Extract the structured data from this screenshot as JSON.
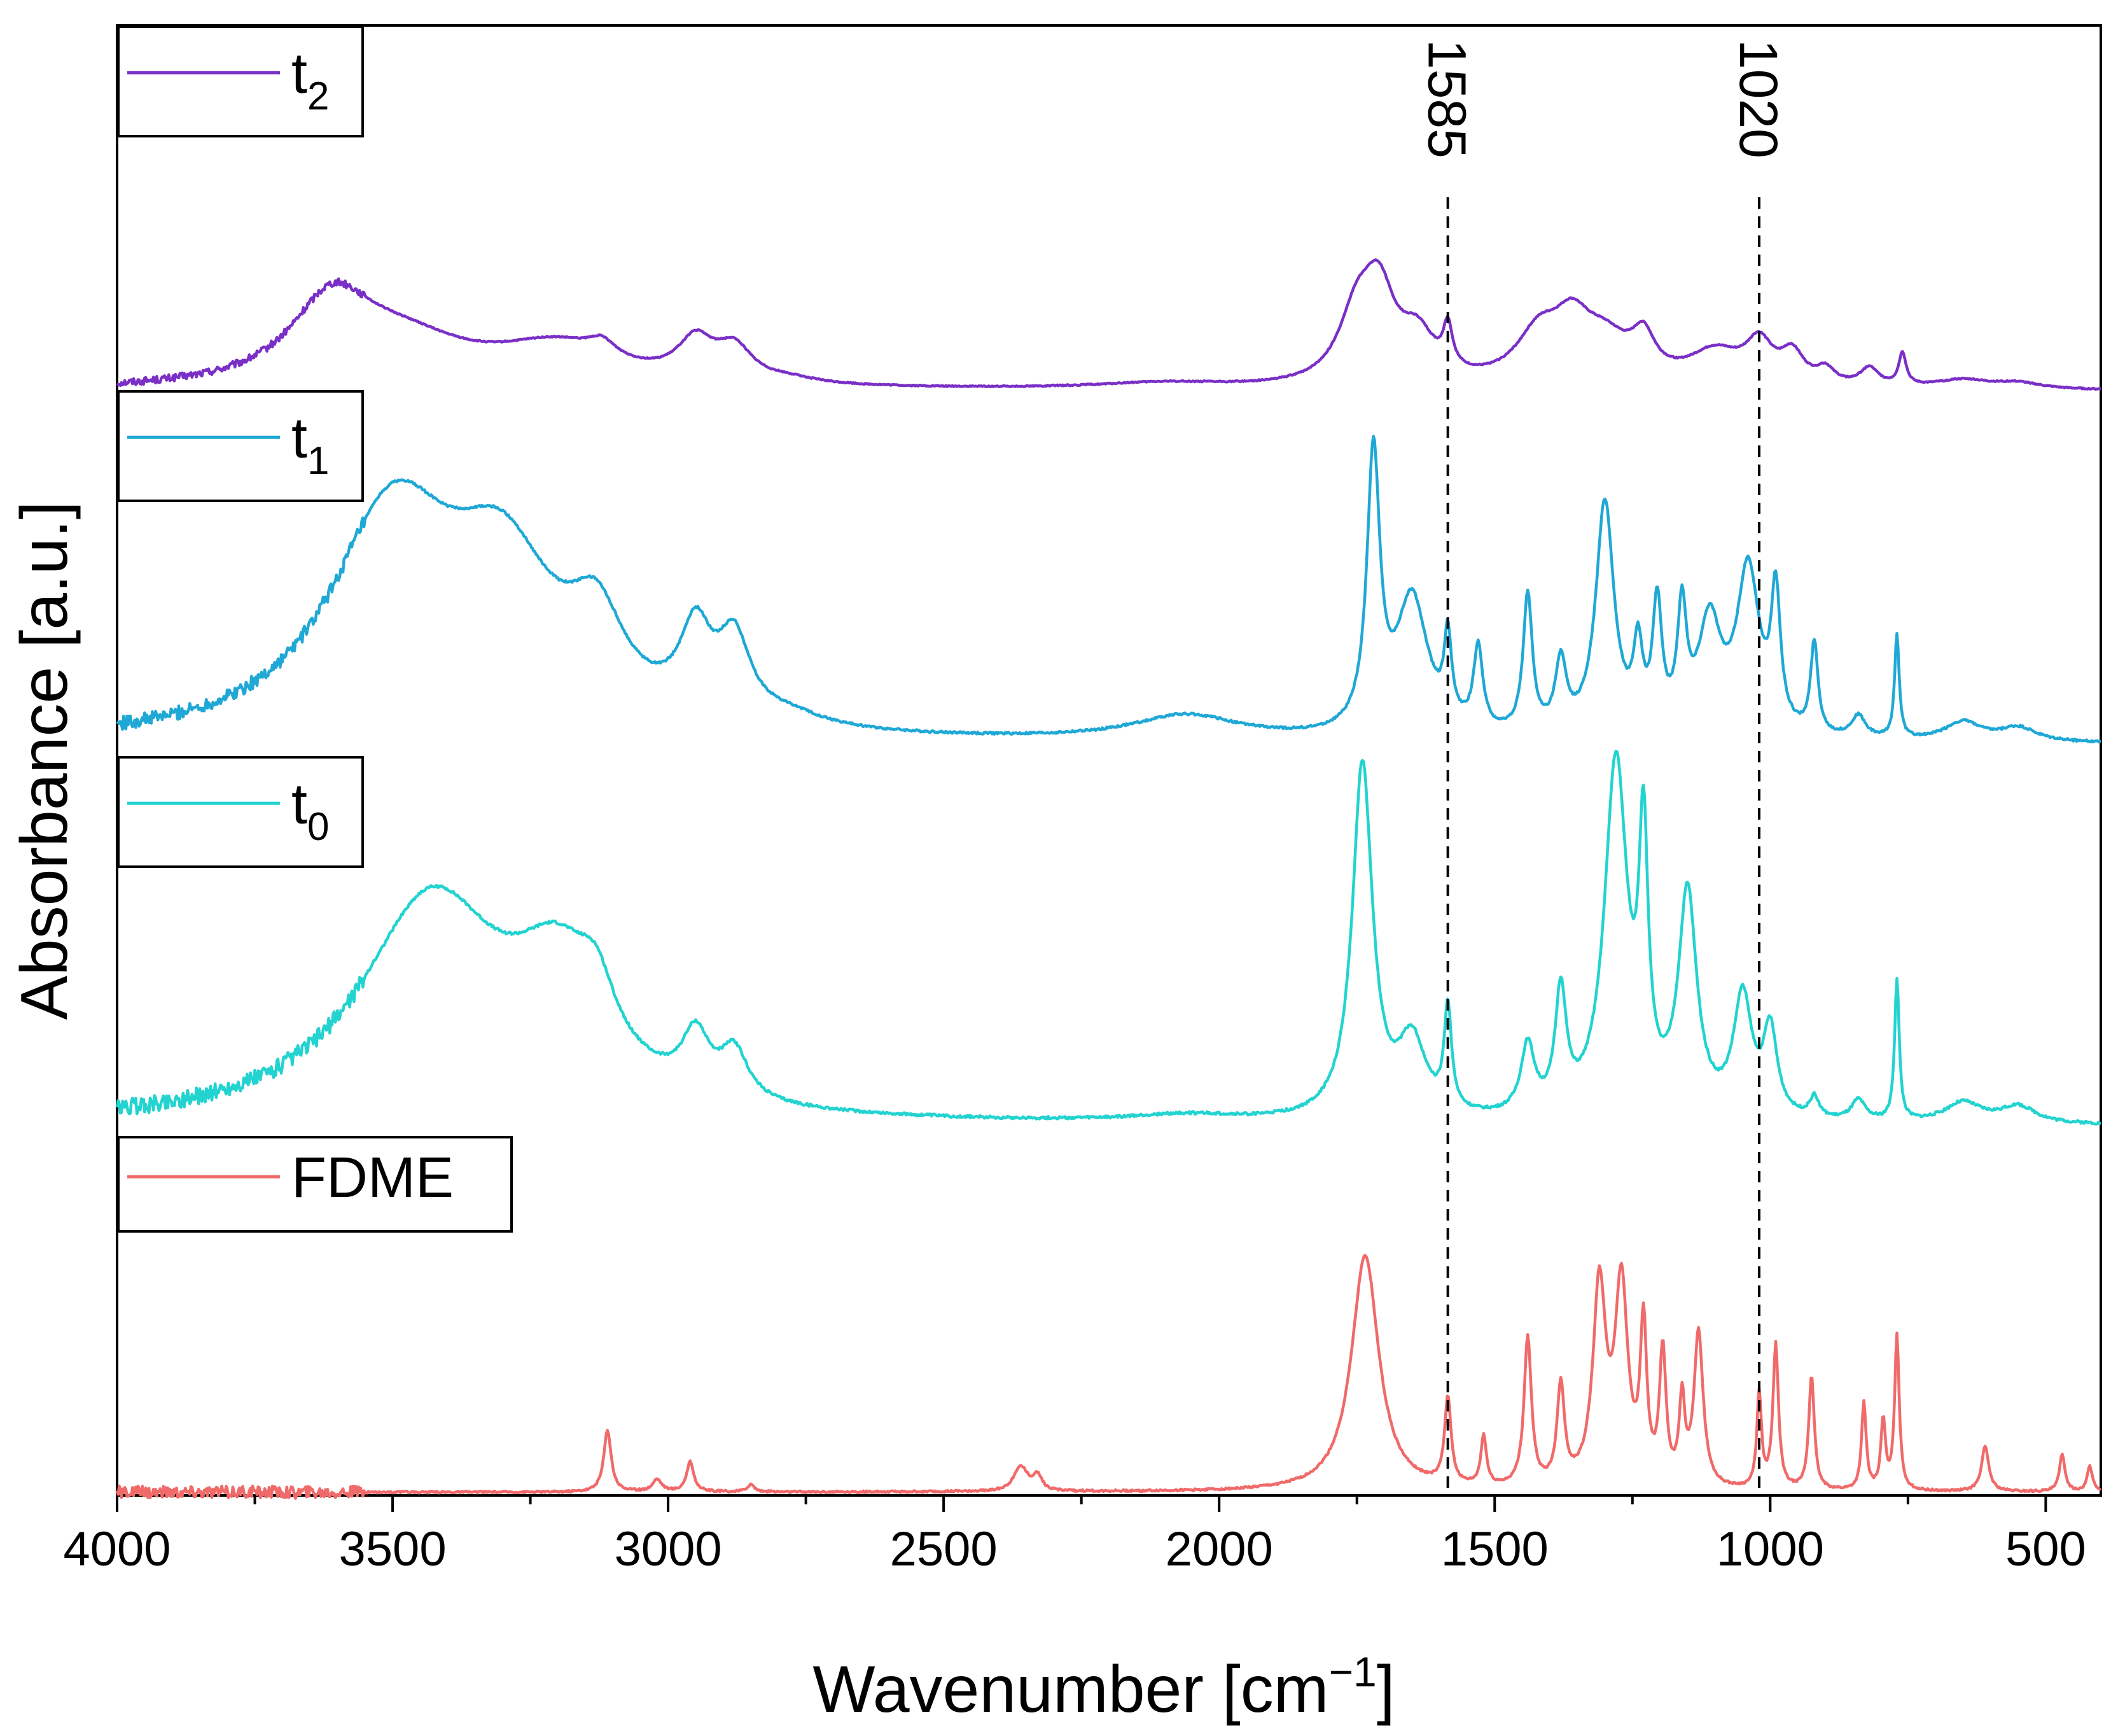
{
  "chart_data": {
    "type": "line",
    "title": "",
    "xlabel": "Wavenumber [cm",
    "xlabel_sup": "−1",
    "xlabel_end": "]",
    "ylabel": "Absorbance [a.u.]",
    "xlim": [
      4000,
      400
    ],
    "x_reversed": true,
    "xticks": [
      4000,
      3500,
      3000,
      2500,
      2000,
      1500,
      1000,
      500
    ],
    "yticks": [],
    "grid": false,
    "stacked_offset": true,
    "markers": [
      {
        "label": "1585",
        "x": 1585,
        "style": "dashed"
      },
      {
        "label": "1020",
        "x": 1020,
        "style": "dashed"
      }
    ],
    "series": [
      {
        "name": "t2",
        "legend_base": "t",
        "legend_sub": "2",
        "color": "#7a2fc6",
        "baseline": 0.0,
        "scale": 1.0,
        "peaks": [
          {
            "x": 3610,
            "h": 0.55,
            "w": 90
          },
          {
            "x": 3480,
            "h": 0.28,
            "w": 150
          },
          {
            "x": 3200,
            "h": 0.26,
            "w": 140
          },
          {
            "x": 3120,
            "h": 0.1,
            "w": 30
          },
          {
            "x": 2950,
            "h": 0.26,
            "w": 40
          },
          {
            "x": 2880,
            "h": 0.22,
            "w": 40
          },
          {
            "x": 2780,
            "h": 0.03,
            "w": 60
          },
          {
            "x": 2100,
            "h": 0.04,
            "w": 150
          },
          {
            "x": 1750,
            "h": 0.45,
            "w": 40
          },
          {
            "x": 1710,
            "h": 0.55,
            "w": 35
          },
          {
            "x": 1640,
            "h": 0.3,
            "w": 40
          },
          {
            "x": 1585,
            "h": 0.28,
            "w": 10
          },
          {
            "x": 1420,
            "h": 0.32,
            "w": 50
          },
          {
            "x": 1360,
            "h": 0.32,
            "w": 40
          },
          {
            "x": 1300,
            "h": 0.28,
            "w": 60
          },
          {
            "x": 1230,
            "h": 0.25,
            "w": 25
          },
          {
            "x": 1100,
            "h": 0.22,
            "w": 60
          },
          {
            "x": 1020,
            "h": 0.26,
            "w": 30
          },
          {
            "x": 960,
            "h": 0.2,
            "w": 25
          },
          {
            "x": 900,
            "h": 0.1,
            "w": 20
          },
          {
            "x": 820,
            "h": 0.12,
            "w": 20
          },
          {
            "x": 760,
            "h": 0.22,
            "w": 8
          },
          {
            "x": 650,
            "h": 0.06,
            "w": 60
          },
          {
            "x": 550,
            "h": 0.04,
            "w": 50
          }
        ]
      },
      {
        "name": "t1",
        "legend_base": "t",
        "legend_sub": "1",
        "color": "#1fa8d6",
        "baseline": 0.0,
        "scale": 1.0,
        "peaks": [
          {
            "x": 3500,
            "h": 0.8,
            "w": 140
          },
          {
            "x": 3300,
            "h": 0.55,
            "w": 120
          },
          {
            "x": 3130,
            "h": 0.3,
            "w": 60
          },
          {
            "x": 2950,
            "h": 0.3,
            "w": 35
          },
          {
            "x": 2880,
            "h": 0.28,
            "w": 35
          },
          {
            "x": 2780,
            "h": 0.04,
            "w": 80
          },
          {
            "x": 2060,
            "h": 0.09,
            "w": 120
          },
          {
            "x": 1720,
            "h": 1.0,
            "w": 14
          },
          {
            "x": 1650,
            "h": 0.5,
            "w": 35
          },
          {
            "x": 1585,
            "h": 0.3,
            "w": 8
          },
          {
            "x": 1530,
            "h": 0.3,
            "w": 10
          },
          {
            "x": 1440,
            "h": 0.5,
            "w": 10
          },
          {
            "x": 1380,
            "h": 0.25,
            "w": 12
          },
          {
            "x": 1300,
            "h": 0.85,
            "w": 20
          },
          {
            "x": 1240,
            "h": 0.28,
            "w": 10
          },
          {
            "x": 1205,
            "h": 0.45,
            "w": 10
          },
          {
            "x": 1160,
            "h": 0.42,
            "w": 10
          },
          {
            "x": 1110,
            "h": 0.4,
            "w": 25
          },
          {
            "x": 1040,
            "h": 0.6,
            "w": 25
          },
          {
            "x": 990,
            "h": 0.48,
            "w": 10
          },
          {
            "x": 920,
            "h": 0.33,
            "w": 8
          },
          {
            "x": 840,
            "h": 0.08,
            "w": 15
          },
          {
            "x": 770,
            "h": 0.38,
            "w": 5
          },
          {
            "x": 650,
            "h": 0.07,
            "w": 40
          },
          {
            "x": 550,
            "h": 0.05,
            "w": 40
          }
        ]
      },
      {
        "name": "t0",
        "legend_base": "t",
        "legend_sub": "0",
        "color": "#22d3d0",
        "baseline": 0.0,
        "scale": 1.0,
        "peaks": [
          {
            "x": 3430,
            "h": 0.65,
            "w": 160
          },
          {
            "x": 3200,
            "h": 0.35,
            "w": 100
          },
          {
            "x": 3130,
            "h": 0.15,
            "w": 40
          },
          {
            "x": 2950,
            "h": 0.17,
            "w": 30
          },
          {
            "x": 2880,
            "h": 0.14,
            "w": 30
          },
          {
            "x": 2060,
            "h": 0.02,
            "w": 120
          },
          {
            "x": 1740,
            "h": 1.05,
            "w": 22
          },
          {
            "x": 1650,
            "h": 0.22,
            "w": 30
          },
          {
            "x": 1585,
            "h": 0.3,
            "w": 8
          },
          {
            "x": 1440,
            "h": 0.2,
            "w": 15
          },
          {
            "x": 1380,
            "h": 0.35,
            "w": 12
          },
          {
            "x": 1280,
            "h": 1.05,
            "w": 25
          },
          {
            "x": 1230,
            "h": 0.75,
            "w": 10
          },
          {
            "x": 1150,
            "h": 0.65,
            "w": 20
          },
          {
            "x": 1050,
            "h": 0.35,
            "w": 20
          },
          {
            "x": 1000,
            "h": 0.25,
            "w": 15
          },
          {
            "x": 920,
            "h": 0.06,
            "w": 10
          },
          {
            "x": 840,
            "h": 0.06,
            "w": 15
          },
          {
            "x": 770,
            "h": 0.42,
            "w": 5
          },
          {
            "x": 650,
            "h": 0.06,
            "w": 40
          },
          {
            "x": 550,
            "h": 0.05,
            "w": 40
          }
        ]
      },
      {
        "name": "FDME",
        "legend_base": "FDME",
        "legend_sub": "",
        "color": "#f06a6a",
        "baseline": 0.0,
        "scale": 1.0,
        "peaks": [
          {
            "x": 3110,
            "h": 0.25,
            "w": 8
          },
          {
            "x": 3020,
            "h": 0.05,
            "w": 10
          },
          {
            "x": 2960,
            "h": 0.12,
            "w": 8
          },
          {
            "x": 2850,
            "h": 0.03,
            "w": 8
          },
          {
            "x": 2360,
            "h": 0.1,
            "w": 15
          },
          {
            "x": 2330,
            "h": 0.06,
            "w": 10
          },
          {
            "x": 1735,
            "h": 0.95,
            "w": 30
          },
          {
            "x": 1585,
            "h": 0.35,
            "w": 7
          },
          {
            "x": 1520,
            "h": 0.2,
            "w": 6
          },
          {
            "x": 1440,
            "h": 0.6,
            "w": 8
          },
          {
            "x": 1380,
            "h": 0.4,
            "w": 8
          },
          {
            "x": 1310,
            "h": 0.8,
            "w": 14
          },
          {
            "x": 1270,
            "h": 0.8,
            "w": 14
          },
          {
            "x": 1230,
            "h": 0.62,
            "w": 7
          },
          {
            "x": 1195,
            "h": 0.53,
            "w": 7
          },
          {
            "x": 1160,
            "h": 0.33,
            "w": 6
          },
          {
            "x": 1130,
            "h": 0.62,
            "w": 10
          },
          {
            "x": 1020,
            "h": 0.38,
            "w": 5
          },
          {
            "x": 990,
            "h": 0.58,
            "w": 6
          },
          {
            "x": 925,
            "h": 0.46,
            "w": 6
          },
          {
            "x": 830,
            "h": 0.35,
            "w": 5
          },
          {
            "x": 795,
            "h": 0.28,
            "w": 5
          },
          {
            "x": 770,
            "h": 0.62,
            "w": 5
          },
          {
            "x": 610,
            "h": 0.18,
            "w": 8
          },
          {
            "x": 470,
            "h": 0.15,
            "w": 6
          },
          {
            "x": 420,
            "h": 0.1,
            "w": 6
          }
        ]
      }
    ]
  }
}
